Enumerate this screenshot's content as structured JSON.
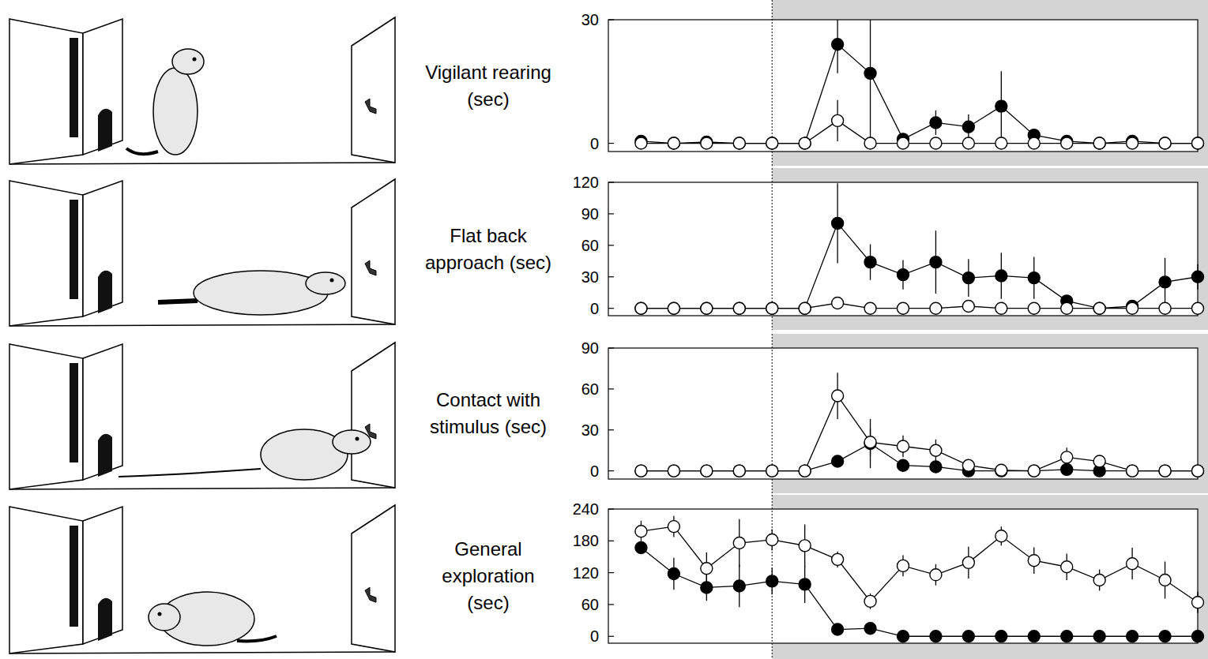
{
  "chart_data": [
    {
      "type": "line",
      "ylabel": "Vigilant rearing (sec)",
      "x": [
        1,
        2,
        3,
        4,
        5,
        6,
        7,
        8,
        9,
        10,
        11,
        12,
        13,
        14,
        15,
        16,
        17,
        18
      ],
      "xlim": [
        0,
        18
      ],
      "ylim": [
        -2,
        30
      ],
      "yticks": [
        0,
        30
      ],
      "shaded": [
        5,
        18
      ],
      "marker": "circle",
      "tick_labels": "y",
      "series": [
        {
          "color": "#000000",
          "values": [
            0.5,
            0,
            0.3,
            0,
            0,
            0,
            24,
            17,
            1,
            5,
            4,
            9,
            2,
            0.5,
            0,
            0.5,
            0,
            0
          ],
          "errors": [
            0,
            0,
            0,
            0,
            0,
            0,
            7,
            17,
            0,
            3,
            3,
            8.5,
            1,
            0,
            0,
            0,
            0,
            0
          ]
        },
        {
          "color": "#ffffff",
          "values": [
            0,
            0,
            0,
            0,
            0,
            0,
            5.5,
            0,
            0,
            0,
            0,
            0,
            0,
            0,
            0,
            0,
            0,
            0
          ],
          "errors": [
            0,
            0,
            0,
            0,
            0,
            0,
            5,
            0,
            0,
            0,
            0,
            0,
            0,
            0,
            0,
            0,
            0,
            0
          ]
        }
      ]
    },
    {
      "type": "line",
      "ylabel": "Flat back approach (sec)",
      "x": [
        1,
        2,
        3,
        4,
        5,
        6,
        7,
        8,
        9,
        10,
        11,
        12,
        13,
        14,
        15,
        16,
        17,
        18
      ],
      "xlim": [
        0,
        18
      ],
      "ylim": [
        -7,
        120
      ],
      "yticks": [
        0,
        30,
        60,
        90,
        120
      ],
      "shaded": [
        5,
        18
      ],
      "marker": "circle",
      "tick_labels": "y",
      "series": [
        {
          "color": "#000000",
          "values": [
            0,
            0,
            0,
            0,
            0,
            0,
            81,
            44,
            32,
            44,
            29,
            31,
            29,
            7,
            0,
            2,
            25,
            30
          ],
          "errors": [
            0,
            0,
            0,
            0,
            0,
            0,
            38,
            17,
            14,
            30,
            18,
            22,
            20,
            3,
            0,
            2,
            23,
            12
          ]
        },
        {
          "color": "#ffffff",
          "values": [
            0,
            0,
            0,
            0,
            0,
            0,
            5,
            0,
            0,
            0,
            2,
            0,
            0,
            0,
            0,
            0,
            0,
            0
          ],
          "errors": [
            0,
            0,
            0,
            0,
            0,
            0,
            0,
            0,
            0,
            0,
            0,
            0,
            0,
            0,
            0,
            0,
            0,
            0
          ]
        }
      ]
    },
    {
      "type": "line",
      "ylabel": "Contact with stimulus (sec)",
      "x": [
        1,
        2,
        3,
        4,
        5,
        6,
        7,
        8,
        9,
        10,
        11,
        12,
        13,
        14,
        15,
        16,
        17,
        18
      ],
      "xlim": [
        0,
        18
      ],
      "ylim": [
        -6,
        90
      ],
      "yticks": [
        0,
        30,
        60,
        90
      ],
      "shaded": [
        5,
        18
      ],
      "marker": "circle",
      "tick_labels": "y",
      "series": [
        {
          "color": "#000000",
          "values": [
            0,
            0,
            0,
            0,
            0,
            0,
            7,
            20,
            4,
            3,
            0,
            0,
            0,
            1,
            0,
            0,
            0,
            0
          ],
          "errors": [
            0,
            0,
            0,
            0,
            0,
            0,
            0,
            18,
            0,
            0,
            0,
            0,
            0,
            0,
            0,
            0,
            0,
            0
          ]
        },
        {
          "color": "#ffffff",
          "values": [
            0,
            0,
            0,
            0,
            0,
            0,
            55,
            21,
            18,
            15,
            4,
            0.5,
            0,
            10,
            7,
            0,
            0,
            0
          ],
          "errors": [
            0,
            0,
            0,
            0,
            0,
            0,
            17,
            10,
            8,
            8,
            3,
            0,
            0,
            7,
            4,
            0,
            0,
            0
          ]
        }
      ]
    },
    {
      "type": "line",
      "ylabel": "General exploration (sec)",
      "x": [
        1,
        2,
        3,
        4,
        5,
        6,
        7,
        8,
        9,
        10,
        11,
        12,
        13,
        14,
        15,
        16,
        17,
        18
      ],
      "xlim": [
        0,
        18
      ],
      "ylim": [
        -13,
        240
      ],
      "yticks": [
        0,
        60,
        120,
        180,
        240
      ],
      "shaded": [
        5,
        18
      ],
      "marker": "circle",
      "tick_labels": "y",
      "series": [
        {
          "color": "#000000",
          "values": [
            167,
            118,
            92,
            95,
            104,
            98,
            13,
            15,
            0,
            0,
            0,
            0,
            0,
            0,
            0,
            0,
            0,
            0
          ],
          "errors": [
            12,
            30,
            25,
            40,
            25,
            35,
            0,
            5,
            0,
            0,
            0,
            0,
            0,
            0,
            0,
            0,
            0,
            0
          ]
        },
        {
          "color": "#ffffff",
          "values": [
            198,
            207,
            128,
            176,
            182,
            171,
            145,
            66,
            133,
            116,
            139,
            189,
            143,
            131,
            106,
            137,
            106,
            64
          ],
          "errors": [
            20,
            20,
            30,
            45,
            20,
            40,
            15,
            15,
            20,
            20,
            30,
            18,
            25,
            25,
            20,
            30,
            35,
            20
          ]
        }
      ]
    }
  ]
}
